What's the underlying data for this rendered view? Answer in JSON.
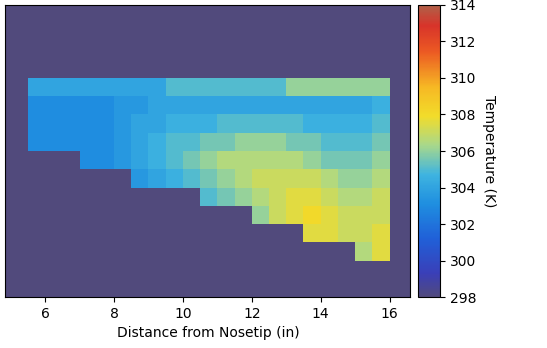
{
  "chart_data": {
    "type": "heatmap",
    "x_label": "Distance from Nosetip (in)",
    "xlim": [
      4.85,
      16.6
    ],
    "xticks": [
      6,
      8,
      10,
      12,
      14,
      16
    ],
    "tick_labels": "x",
    "x_edges": [
      5.0,
      5.5,
      6.0,
      6.5,
      7.0,
      7.5,
      8.0,
      8.5,
      9.0,
      9.5,
      10.0,
      10.5,
      11.0,
      11.5,
      12.0,
      12.5,
      13.0,
      13.5,
      14.0,
      14.5,
      15.0,
      15.5,
      16.0,
      16.5
    ],
    "cells": [
      [
        298,
        298,
        298,
        298,
        298,
        298,
        298,
        298,
        298,
        298,
        298,
        298,
        298,
        298,
        298,
        298,
        298,
        298,
        298,
        298,
        298,
        298,
        298
      ],
      [
        298,
        298,
        298,
        298,
        298,
        298,
        298,
        298,
        298,
        298,
        298,
        298,
        298,
        298,
        298,
        298,
        298,
        298,
        298,
        298,
        298,
        298,
        298
      ],
      [
        298,
        298,
        298,
        298,
        298,
        298,
        298,
        298,
        298,
        298,
        298,
        298,
        298,
        298,
        298,
        298,
        298,
        298,
        298,
        298,
        298,
        298,
        298
      ],
      [
        298,
        298,
        298,
        298,
        298,
        298,
        298,
        298,
        298,
        298,
        298,
        298,
        298,
        298,
        298,
        298,
        298,
        298,
        298,
        298,
        298,
        298,
        298
      ],
      [
        298,
        304,
        304,
        304,
        304,
        304,
        304,
        304,
        304,
        305,
        305,
        305,
        305,
        305,
        305,
        305,
        306,
        306,
        306,
        306,
        306,
        306,
        298
      ],
      [
        298,
        303,
        303,
        303,
        303,
        303,
        303.5,
        303.5,
        304,
        304,
        304,
        304,
        304,
        304,
        304,
        304,
        304,
        304,
        304,
        304,
        304,
        304.5,
        298
      ],
      [
        298,
        303,
        303,
        303,
        303,
        303,
        303.5,
        304,
        304,
        304.5,
        304.5,
        304.5,
        305,
        305,
        305,
        305,
        305,
        304.5,
        304.5,
        304.5,
        304.5,
        305,
        298
      ],
      [
        298,
        303,
        303,
        303,
        303,
        303,
        303.5,
        304,
        304.5,
        305,
        305,
        305.5,
        305.5,
        306,
        306,
        306,
        305.5,
        305.5,
        305,
        305,
        305,
        305.5,
        298
      ],
      [
        298,
        298,
        298,
        298,
        303,
        303,
        303.5,
        304,
        304.5,
        305,
        305.5,
        306,
        306.5,
        306.5,
        306.5,
        306.5,
        306.5,
        306,
        305.5,
        305.5,
        305.5,
        306,
        298
      ],
      [
        298,
        298,
        298,
        298,
        298,
        298,
        298,
        303.5,
        304,
        304.5,
        305,
        305.5,
        306,
        306.5,
        307,
        307,
        307,
        307,
        306.5,
        306,
        306,
        306.5,
        298
      ],
      [
        298,
        298,
        298,
        298,
        298,
        298,
        298,
        298,
        298,
        298,
        298,
        305,
        305.5,
        306,
        306.5,
        307,
        307.5,
        307.5,
        307,
        306.5,
        306.5,
        307,
        298
      ],
      [
        298,
        298,
        298,
        298,
        298,
        298,
        298,
        298,
        298,
        298,
        298,
        298,
        298,
        298,
        306,
        307,
        307.5,
        308,
        307.5,
        307,
        307,
        307,
        298
      ],
      [
        298,
        298,
        298,
        298,
        298,
        298,
        298,
        298,
        298,
        298,
        298,
        298,
        298,
        298,
        298,
        298,
        298,
        307.5,
        307.5,
        307,
        307,
        307.5,
        298
      ],
      [
        298,
        298,
        298,
        298,
        298,
        298,
        298,
        298,
        298,
        298,
        298,
        298,
        298,
        298,
        298,
        298,
        298,
        298,
        298,
        298,
        306.5,
        307.5,
        298
      ],
      [
        298,
        298,
        298,
        298,
        298,
        298,
        298,
        298,
        298,
        298,
        298,
        298,
        298,
        298,
        298,
        298,
        298,
        298,
        298,
        298,
        298,
        298,
        298
      ],
      [
        298,
        298,
        298,
        298,
        298,
        298,
        298,
        298,
        298,
        298,
        298,
        298,
        298,
        298,
        298,
        298,
        298,
        298,
        298,
        298,
        298,
        298,
        298
      ]
    ],
    "colorbar": {
      "label": "Temperature (K)",
      "range": [
        298,
        314
      ],
      "ticks": [
        298,
        300,
        302,
        304,
        306,
        308,
        310,
        312,
        314
      ]
    }
  }
}
